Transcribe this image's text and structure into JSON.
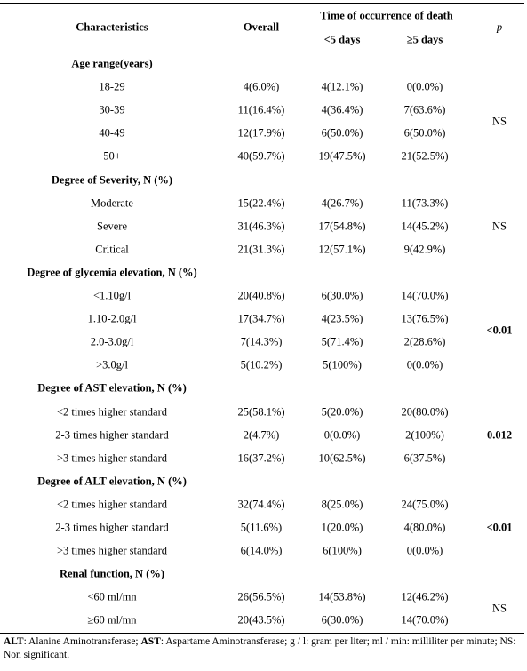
{
  "header": {
    "characteristics": "Characteristics",
    "overall": "Overall",
    "time_group": "Time of occurrence of death",
    "lt5": "<5 days",
    "ge5": "≥5 days",
    "p": "p"
  },
  "sections": [
    {
      "title": "Age range(years)",
      "p": "NS",
      "p_bold": false,
      "rows": [
        [
          "18-29",
          "4(6.0%)",
          "4(12.1%)",
          "0(0.0%)"
        ],
        [
          "30-39",
          "11(16.4%)",
          "4(36.4%)",
          "7(63.6%)"
        ],
        [
          "40-49",
          "12(17.9%)",
          "6(50.0%)",
          "6(50.0%)"
        ],
        [
          "50+",
          "40(59.7%)",
          "19(47.5%)",
          "21(52.5%)"
        ]
      ]
    },
    {
      "title": "Degree of Severity, N (%)",
      "p": "NS",
      "p_bold": false,
      "rows": [
        [
          "Moderate",
          "15(22.4%)",
          "4(26.7%)",
          "11(73.3%)"
        ],
        [
          "Severe",
          "31(46.3%)",
          "17(54.8%)",
          "14(45.2%)"
        ],
        [
          "Critical",
          "21(31.3%)",
          "12(57.1%)",
          "9(42.9%)"
        ]
      ]
    },
    {
      "title": "Degree of glycemia elevation, N (%)",
      "p": "<0.01",
      "p_bold": true,
      "rows": [
        [
          "<1.10g/l",
          "20(40.8%)",
          "6(30.0%)",
          "14(70.0%)"
        ],
        [
          "1.10-2.0g/l",
          "17(34.7%)",
          "4(23.5%)",
          "13(76.5%)"
        ],
        [
          "2.0-3.0g/l",
          "7(14.3%)",
          "5(71.4%)",
          "2(28.6%)"
        ],
        [
          ">3.0g/l",
          "5(10.2%)",
          "5(100%)",
          "0(0.0%)"
        ]
      ]
    },
    {
      "title": "Degree of AST elevation, N (%)",
      "p": "0.012",
      "p_bold": true,
      "rows": [
        [
          "<2 times higher standard",
          "25(58.1%)",
          "5(20.0%)",
          "20(80.0%)"
        ],
        [
          "2-3 times higher standard",
          "2(4.7%)",
          "0(0.0%)",
          "2(100%)"
        ],
        [
          ">3 times higher standard",
          "16(37.2%)",
          "10(62.5%)",
          "6(37.5%)"
        ]
      ]
    },
    {
      "title": "Degree of ALT elevation, N (%)",
      "p": "<0.01",
      "p_bold": true,
      "rows": [
        [
          "<2 times higher standard",
          "32(74.4%)",
          "8(25.0%)",
          "24(75.0%)"
        ],
        [
          "2-3 times higher standard",
          "5(11.6%)",
          "1(20.0%)",
          "4(80.0%)"
        ],
        [
          ">3 times higher standard",
          "6(14.0%)",
          "6(100%)",
          "0(0.0%)"
        ]
      ]
    },
    {
      "title": "Renal function, N (%)",
      "p": "NS",
      "p_bold": false,
      "rows": [
        [
          "<60 ml/mn",
          "26(56.5%)",
          "14(53.8%)",
          "12(46.2%)"
        ],
        [
          "≥60 ml/mn",
          "20(43.5%)",
          "6(30.0%)",
          "14(70.0%)"
        ]
      ]
    }
  ],
  "footnote": [
    {
      "text": "ALT",
      "bold": true
    },
    {
      "text": ": Alanine Aminotransferase; ",
      "bold": false
    },
    {
      "text": "AST",
      "bold": true
    },
    {
      "text": ": Aspartame Aminotransferase; g / l: gram per liter; ml / min: milliliter per minute; NS: Non significant.",
      "bold": false
    }
  ]
}
